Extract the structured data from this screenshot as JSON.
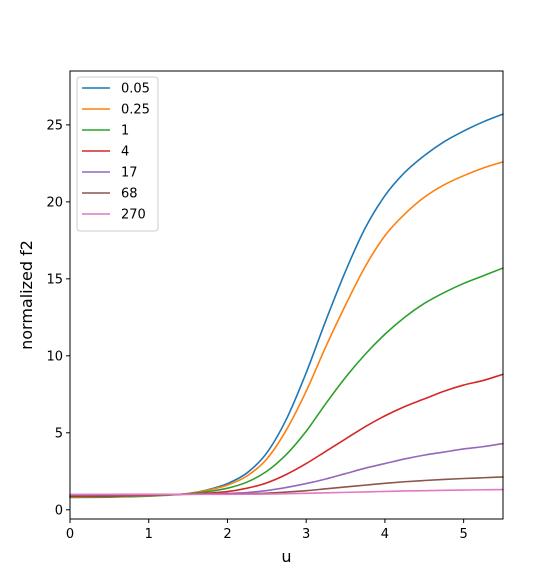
{
  "chart_data": {
    "type": "line",
    "xlabel": "u",
    "ylabel": "normalized f2",
    "xlim": [
      0,
      5.5
    ],
    "ylim": [
      -0.6,
      28.5
    ],
    "xticks": [
      0,
      1,
      2,
      3,
      4,
      5
    ],
    "yticks": [
      0,
      5,
      10,
      15,
      20,
      25
    ],
    "grid": false,
    "legend_position": "upper-left",
    "x": [
      0,
      0.5,
      1.0,
      1.25,
      1.5,
      1.75,
      2.0,
      2.25,
      2.5,
      2.75,
      3.0,
      3.25,
      3.5,
      3.75,
      4.0,
      4.25,
      4.5,
      4.75,
      5.0,
      5.25,
      5.5
    ],
    "series": [
      {
        "name": "0.05",
        "color": "#1f77b4",
        "values": [
          0.8,
          0.82,
          0.88,
          0.95,
          1.05,
          1.3,
          1.7,
          2.4,
          3.7,
          5.9,
          8.9,
          12.3,
          15.5,
          18.3,
          20.4,
          21.9,
          23.0,
          23.9,
          24.6,
          25.2,
          25.7
        ]
      },
      {
        "name": "0.25",
        "color": "#ff7f0e",
        "values": [
          0.82,
          0.84,
          0.9,
          0.96,
          1.05,
          1.27,
          1.6,
          2.2,
          3.3,
          5.2,
          7.7,
          10.6,
          13.3,
          15.8,
          17.8,
          19.2,
          20.3,
          21.1,
          21.7,
          22.2,
          22.6
        ]
      },
      {
        "name": "1",
        "color": "#2ca02c",
        "values": [
          0.84,
          0.86,
          0.92,
          0.97,
          1.04,
          1.18,
          1.4,
          1.8,
          2.5,
          3.6,
          5.1,
          6.9,
          8.6,
          10.1,
          11.4,
          12.5,
          13.4,
          14.1,
          14.7,
          15.2,
          15.7
        ]
      },
      {
        "name": "4",
        "color": "#d62728",
        "values": [
          0.88,
          0.9,
          0.95,
          0.99,
          1.02,
          1.08,
          1.18,
          1.4,
          1.75,
          2.3,
          3.0,
          3.8,
          4.6,
          5.4,
          6.1,
          6.7,
          7.2,
          7.7,
          8.1,
          8.4,
          8.8
        ]
      },
      {
        "name": "17",
        "color": "#9467bd",
        "values": [
          0.95,
          0.96,
          0.98,
          1.0,
          1.01,
          1.03,
          1.06,
          1.12,
          1.25,
          1.45,
          1.7,
          2.0,
          2.35,
          2.7,
          3.0,
          3.3,
          3.55,
          3.75,
          3.95,
          4.1,
          4.3
        ]
      },
      {
        "name": "68",
        "color": "#8c564b",
        "values": [
          0.98,
          0.99,
          1.0,
          1.0,
          1.0,
          1.01,
          1.02,
          1.04,
          1.08,
          1.15,
          1.24,
          1.36,
          1.48,
          1.6,
          1.72,
          1.82,
          1.9,
          1.97,
          2.03,
          2.08,
          2.13
        ]
      },
      {
        "name": "270",
        "color": "#e377c2",
        "values": [
          1.0,
          1.0,
          1.0,
          1.0,
          1.0,
          1.0,
          1.0,
          1.01,
          1.02,
          1.04,
          1.07,
          1.1,
          1.13,
          1.16,
          1.19,
          1.22,
          1.24,
          1.26,
          1.28,
          1.3,
          1.31
        ]
      }
    ]
  }
}
